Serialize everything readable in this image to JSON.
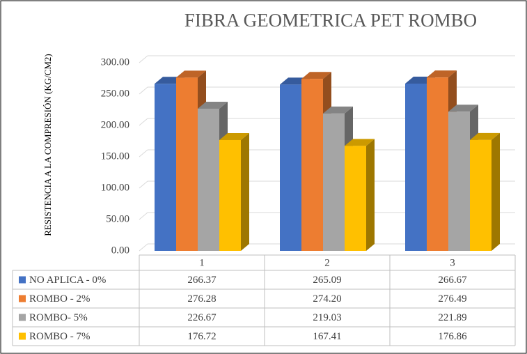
{
  "chart_data": {
    "type": "bar3d",
    "title": "FIBRA GEOMETRICA PET ROMBO",
    "y_label": "RESISTENCIA A LA COMPRESIÓN (KG/CM2)",
    "categories": [
      "1",
      "2",
      "3"
    ],
    "series": [
      {
        "name": "NO APLICA - 0%",
        "color": "#4472c4",
        "values": [
          266.37,
          265.09,
          266.67
        ],
        "value_labels": [
          "266.37",
          "265.09",
          "266.67"
        ]
      },
      {
        "name": "ROMBO - 2%",
        "color": "#ed7d31",
        "values": [
          276.28,
          274.2,
          276.49
        ],
        "value_labels": [
          "276.28",
          "274.20",
          "276.49"
        ]
      },
      {
        "name": "ROMBO- 5%",
        "color": "#a5a5a5",
        "values": [
          226.67,
          219.03,
          221.89
        ],
        "value_labels": [
          "226.67",
          "219.03",
          "221.89"
        ]
      },
      {
        "name": "ROMBO - 7%",
        "color": "#ffc000",
        "values": [
          176.72,
          167.41,
          176.86
        ],
        "value_labels": [
          "176.72",
          "167.41",
          "176.86"
        ]
      }
    ],
    "ylim": [
      0,
      300
    ],
    "yticks": [
      {
        "value": 0,
        "label": "0.00"
      },
      {
        "value": 50,
        "label": "50.00"
      },
      {
        "value": 100,
        "label": "100.00"
      },
      {
        "value": 150,
        "label": "150.00"
      },
      {
        "value": 200,
        "label": "200.00"
      },
      {
        "value": 250,
        "label": "250.00"
      },
      {
        "value": 300,
        "label": "300.00"
      }
    ],
    "grid": true,
    "data_table": true
  }
}
